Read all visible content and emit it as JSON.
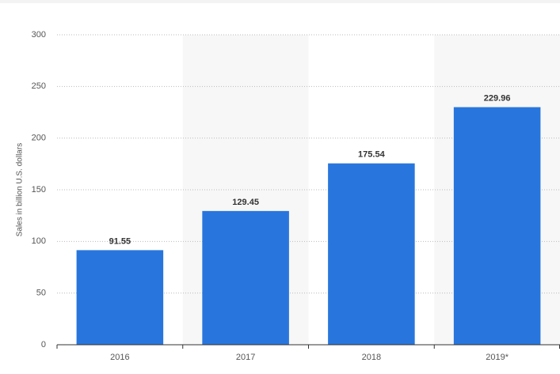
{
  "chart_data": {
    "type": "bar",
    "y_label": "Sales in billion U.S. dollars",
    "categories": [
      "2016",
      "2017",
      "2018",
      "2019*"
    ],
    "values": [
      91.55,
      129.45,
      175.54,
      229.96
    ],
    "color": "#2876dd",
    "ylim": [
      0,
      300
    ],
    "yticks": [
      0,
      50,
      100,
      150,
      200,
      250,
      300
    ],
    "grid": true
  }
}
